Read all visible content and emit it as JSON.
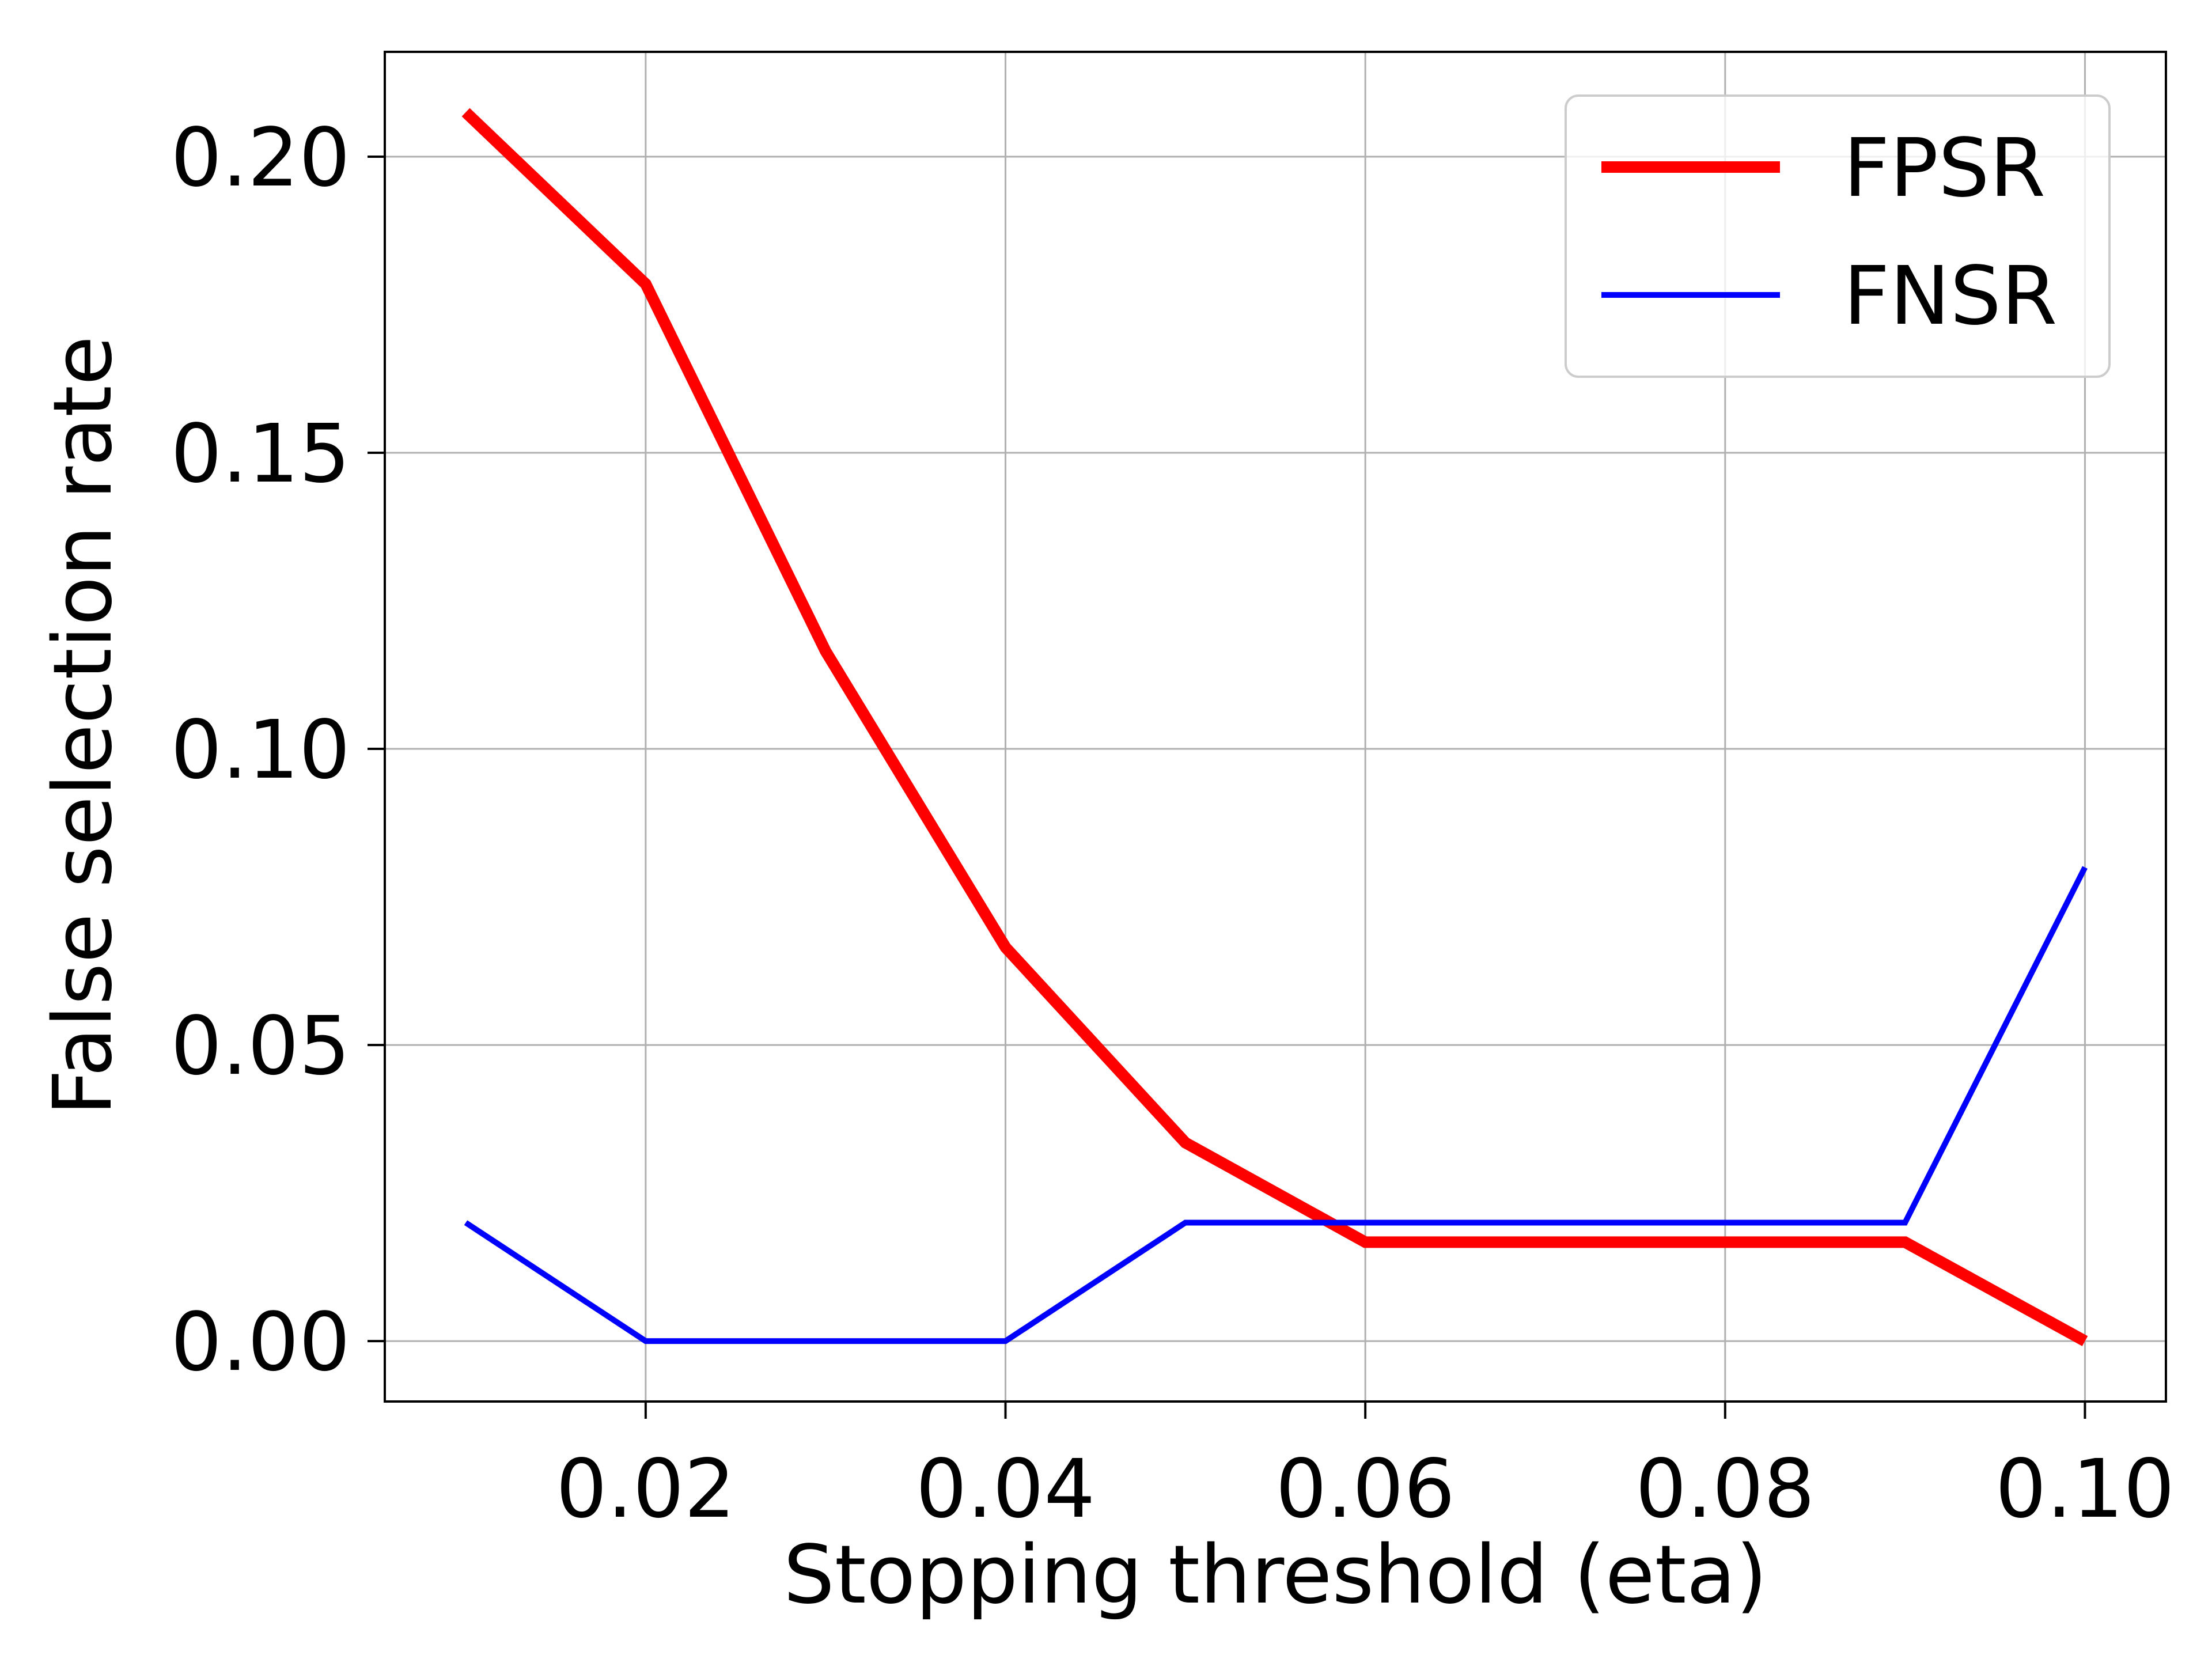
{
  "chart_data": {
    "type": "line",
    "xlabel": "Stopping threshold (eta)",
    "ylabel": "False selection rate",
    "xlim": [
      0.0055,
      0.1045
    ],
    "ylim": [
      -0.0102,
      0.2177
    ],
    "xticks": [
      0.02,
      0.04,
      0.06,
      0.08,
      0.1
    ],
    "xtick_labels": [
      "0.02",
      "0.04",
      "0.06",
      "0.08",
      "0.10"
    ],
    "yticks": [
      0.0,
      0.05,
      0.1,
      0.15,
      0.2
    ],
    "ytick_labels": [
      "0.00",
      "0.05",
      "0.10",
      "0.15",
      "0.20"
    ],
    "grid": true,
    "legend_position": "top-right",
    "x": [
      0.01,
      0.02,
      0.03,
      0.04,
      0.05,
      0.06,
      0.07,
      0.08,
      0.09,
      0.1
    ],
    "series": [
      {
        "name": "FPSR",
        "color": "#ff0000",
        "line_style": "thick",
        "values": [
          0.2075,
          0.1785,
          0.1165,
          0.0665,
          0.0335,
          0.0167,
          0.0167,
          0.0167,
          0.0167,
          0.0
        ]
      },
      {
        "name": "FNSR",
        "color": "#0000ff",
        "line_style": "normal",
        "values": [
          0.02,
          0.0,
          0.0,
          0.0,
          0.02,
          0.02,
          0.02,
          0.02,
          0.02,
          0.08
        ]
      }
    ]
  }
}
